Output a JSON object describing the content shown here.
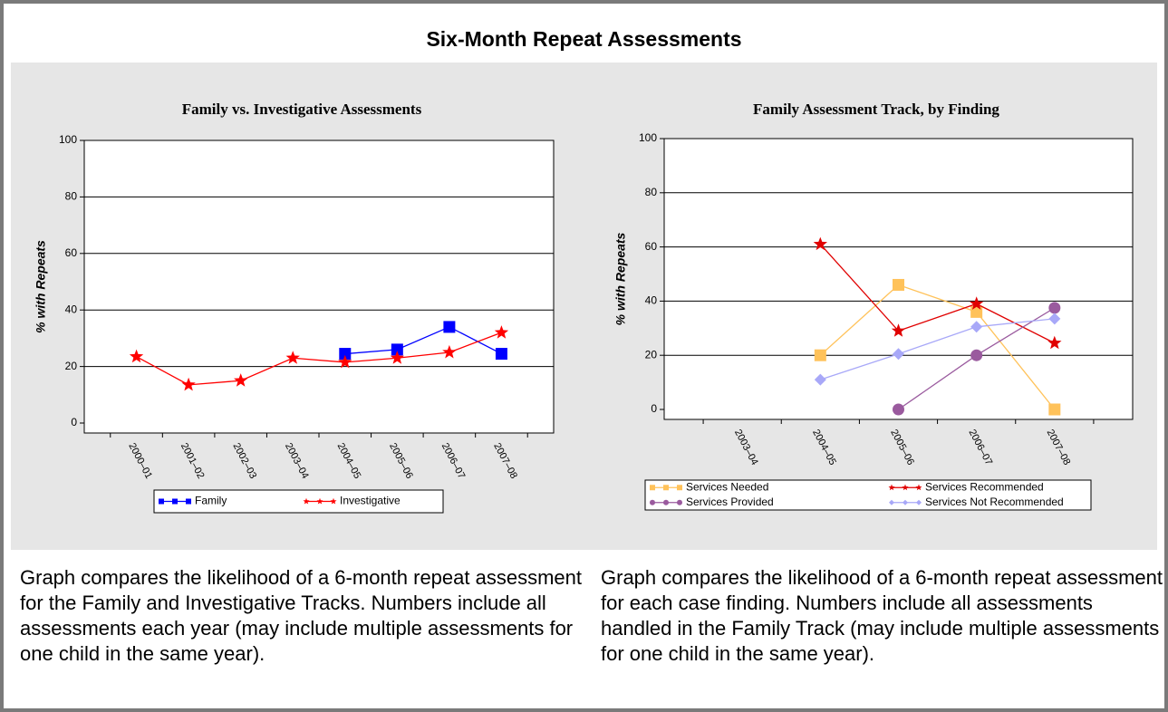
{
  "title": "Six-Month Repeat Assessments",
  "chart_data": [
    {
      "type": "line",
      "title": "Family vs. Investigative Assessments",
      "y_label": "% with Repeats",
      "categories": [
        "2000–01",
        "2001–02",
        "2002–03",
        "2003–04",
        "2004–05",
        "2005–06",
        "2006–07",
        "2007–08"
      ],
      "series": [
        {
          "name": "Family",
          "color": "#0000ff",
          "marker": "square",
          "values": [
            null,
            null,
            null,
            null,
            24.5,
            26,
            34,
            24.5
          ]
        },
        {
          "name": "Investigative",
          "color": "#ff0000",
          "marker": "star",
          "values": [
            23.5,
            13.5,
            15,
            23,
            21.5,
            23,
            25,
            32
          ]
        }
      ],
      "ylim": [
        0,
        100
      ],
      "yticks": [
        0,
        20,
        40,
        60,
        80,
        100
      ],
      "grid": true,
      "legend": "bottom"
    },
    {
      "type": "line",
      "title": "Family Assessment Track, by Finding",
      "y_label": "% with Repeats",
      "categories": [
        "2003–04",
        "2004–05",
        "2005–06",
        "2006–07",
        "2007–08"
      ],
      "series": [
        {
          "name": "Services Needed",
          "color": "#ffc25a",
          "marker": "square",
          "values": [
            null,
            20,
            46,
            36,
            0
          ]
        },
        {
          "name": "Services Recommended",
          "color": "#e00000",
          "marker": "star",
          "values": [
            null,
            61,
            29,
            39,
            24.5
          ]
        },
        {
          "name": "Services Provided",
          "color": "#9a5a9e",
          "marker": "circle",
          "values": [
            null,
            null,
            0,
            20,
            37.5
          ]
        },
        {
          "name": "Services Not Recommended",
          "color": "#a8a8f8",
          "marker": "diamond",
          "values": [
            null,
            11,
            20.5,
            30.5,
            33.5
          ]
        }
      ],
      "ylim": [
        0,
        100
      ],
      "yticks": [
        0,
        20,
        40,
        60,
        80,
        100
      ],
      "grid": true,
      "legend": "bottom"
    }
  ],
  "captions": [
    "Graph compares the likelihood of a 6-month repeat assessment for the Family and Investigative Tracks.  Numbers include all assessments each year (may include multiple assessments for one child in the same year).",
    "Graph compares the likelihood of a 6-month repeat assessment for each case finding.  Numbers include all assessments handled in the Family Track (may include multiple assessments for one child in the same year)."
  ]
}
